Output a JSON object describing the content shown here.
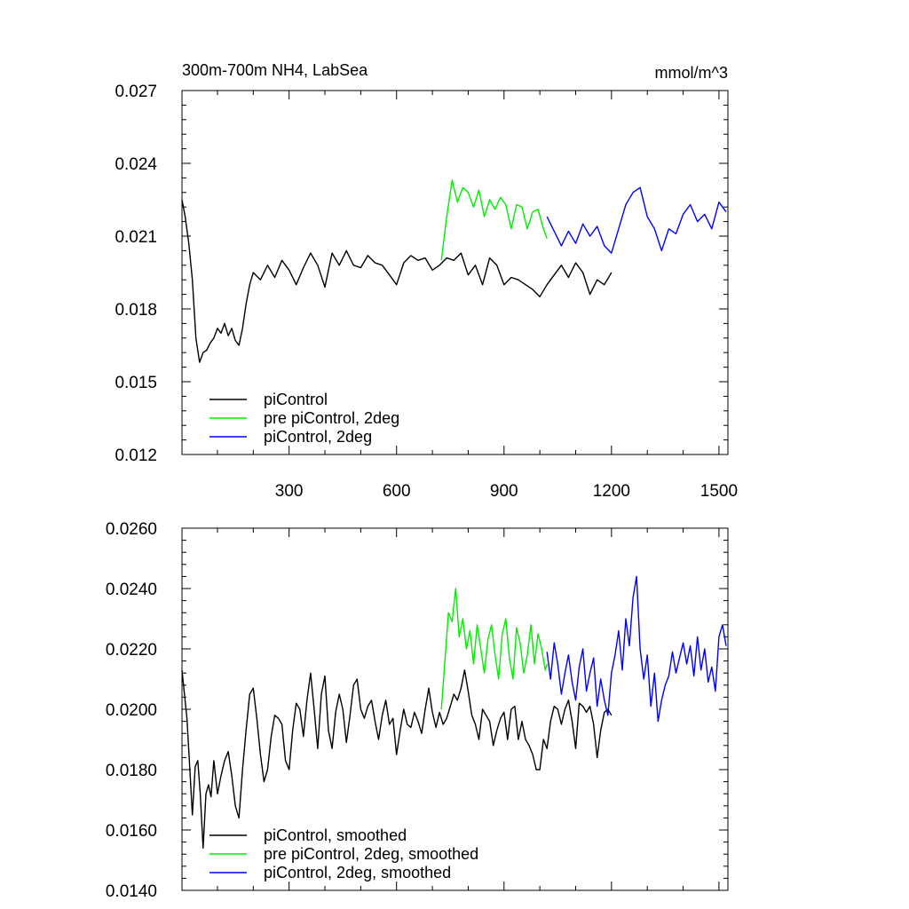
{
  "chart_data": [
    {
      "type": "line",
      "title": "300m-700m NH4, LabSea",
      "units": "mmol/m^3",
      "xlabel": "",
      "ylabel": "",
      "xlim": [
        1,
        1525
      ],
      "ylim": [
        0.012,
        0.027
      ],
      "x_ticks": [
        300,
        600,
        900,
        1200,
        1500
      ],
      "x_tick_labels": [
        "300",
        "600",
        "900",
        "1200",
        "1500"
      ],
      "y_ticks": [
        0.012,
        0.015,
        0.018,
        0.021,
        0.024,
        0.027
      ],
      "y_tick_labels": [
        "0.012",
        "0.015",
        "0.018",
        "0.021",
        "0.024",
        "0.027"
      ],
      "grid": false,
      "legend_position": "bottom-left",
      "series": [
        {
          "name": "piControl",
          "color": "#000000",
          "x": [
            1,
            10,
            20,
            30,
            40,
            50,
            60,
            70,
            80,
            90,
            100,
            110,
            120,
            130,
            140,
            150,
            160,
            170,
            180,
            190,
            200,
            220,
            240,
            260,
            280,
            300,
            320,
            340,
            360,
            380,
            400,
            420,
            440,
            460,
            480,
            500,
            520,
            540,
            560,
            580,
            600,
            620,
            640,
            660,
            680,
            700,
            720,
            740,
            760,
            780,
            800,
            820,
            840,
            860,
            880,
            900,
            920,
            940,
            960,
            980,
            1000,
            1020,
            1040,
            1060,
            1080,
            1100,
            1120,
            1140,
            1160,
            1180,
            1200
          ],
          "values": [
            0.0225,
            0.0218,
            0.0207,
            0.0192,
            0.0168,
            0.0158,
            0.0162,
            0.0163,
            0.0166,
            0.0168,
            0.0172,
            0.017,
            0.0174,
            0.0169,
            0.0172,
            0.0167,
            0.0165,
            0.0172,
            0.0182,
            0.019,
            0.0195,
            0.0192,
            0.0198,
            0.0193,
            0.02,
            0.0196,
            0.019,
            0.0197,
            0.0203,
            0.0198,
            0.0189,
            0.0203,
            0.0198,
            0.0204,
            0.0198,
            0.0197,
            0.0202,
            0.0199,
            0.0198,
            0.0194,
            0.019,
            0.0199,
            0.0202,
            0.02,
            0.0201,
            0.0196,
            0.0198,
            0.0201,
            0.02,
            0.0203,
            0.0194,
            0.0198,
            0.019,
            0.0201,
            0.0198,
            0.019,
            0.0193,
            0.0192,
            0.019,
            0.0188,
            0.0185,
            0.019,
            0.0194,
            0.0198,
            0.0193,
            0.0199,
            0.0195,
            0.0186,
            0.0192,
            0.019,
            0.0195
          ]
        },
        {
          "name": "pre piControl, 2deg",
          "color": "#00ee00",
          "x": [
            725,
            740,
            755,
            770,
            785,
            800,
            815,
            830,
            845,
            860,
            875,
            890,
            905,
            920,
            935,
            950,
            965,
            980,
            995,
            1010,
            1020
          ],
          "values": [
            0.02,
            0.0218,
            0.0233,
            0.0224,
            0.023,
            0.0228,
            0.0222,
            0.0229,
            0.0218,
            0.0225,
            0.0221,
            0.0226,
            0.0223,
            0.0213,
            0.0223,
            0.0222,
            0.0213,
            0.022,
            0.0221,
            0.0213,
            0.0209
          ]
        },
        {
          "name": "piControl, 2deg",
          "color": "#0000ff",
          "x": [
            1020,
            1040,
            1060,
            1080,
            1100,
            1120,
            1140,
            1160,
            1180,
            1200,
            1220,
            1240,
            1260,
            1280,
            1300,
            1320,
            1340,
            1360,
            1380,
            1400,
            1420,
            1440,
            1460,
            1480,
            1500,
            1520
          ],
          "values": [
            0.0218,
            0.0212,
            0.0206,
            0.0212,
            0.0207,
            0.0215,
            0.021,
            0.0214,
            0.0206,
            0.0203,
            0.0213,
            0.0223,
            0.0228,
            0.023,
            0.0218,
            0.0213,
            0.0204,
            0.0213,
            0.0211,
            0.0219,
            0.0223,
            0.0216,
            0.0219,
            0.0213,
            0.0224,
            0.022
          ]
        }
      ]
    },
    {
      "type": "line",
      "title": "",
      "xlabel": "",
      "ylabel": "",
      "xlim": [
        1,
        1525
      ],
      "ylim": [
        0.014,
        0.026
      ],
      "x_ticks": [
        300,
        600,
        900,
        1200,
        1500
      ],
      "y_ticks": [
        0.014,
        0.016,
        0.018,
        0.02,
        0.022,
        0.024,
        0.026
      ],
      "y_tick_labels": [
        "0.0140",
        "0.0160",
        "0.0180",
        "0.0200",
        "0.0220",
        "0.0240",
        "0.0260"
      ],
      "grid": false,
      "legend_position": "bottom-left",
      "series": [
        {
          "name": "piControl, smoothed",
          "color": "#000000",
          "x": [
            1,
            8,
            15,
            22,
            30,
            38,
            45,
            52,
            60,
            68,
            75,
            82,
            90,
            100,
            110,
            120,
            130,
            140,
            150,
            160,
            170,
            180,
            190,
            200,
            210,
            220,
            230,
            240,
            250,
            260,
            270,
            280,
            290,
            300,
            310,
            320,
            330,
            340,
            350,
            360,
            370,
            380,
            390,
            400,
            410,
            420,
            430,
            440,
            450,
            460,
            470,
            480,
            490,
            500,
            510,
            520,
            530,
            540,
            550,
            560,
            570,
            580,
            590,
            600,
            610,
            620,
            630,
            640,
            650,
            660,
            670,
            680,
            690,
            700,
            710,
            720,
            730,
            740,
            750,
            760,
            770,
            780,
            790,
            800,
            810,
            820,
            830,
            840,
            850,
            860,
            870,
            880,
            890,
            900,
            910,
            920,
            930,
            940,
            950,
            960,
            970,
            980,
            990,
            1000,
            1010,
            1020,
            1030,
            1040,
            1050,
            1060,
            1070,
            1080,
            1090,
            1100,
            1110,
            1120,
            1130,
            1140,
            1150,
            1160,
            1170,
            1180,
            1190,
            1200
          ],
          "values": [
            0.0213,
            0.0205,
            0.0197,
            0.0182,
            0.0165,
            0.0181,
            0.0183,
            0.0172,
            0.0154,
            0.0172,
            0.0175,
            0.0171,
            0.0183,
            0.0172,
            0.0178,
            0.0183,
            0.0186,
            0.0178,
            0.0168,
            0.0164,
            0.018,
            0.0193,
            0.0205,
            0.0207,
            0.0197,
            0.0185,
            0.0176,
            0.018,
            0.0191,
            0.0198,
            0.0197,
            0.0195,
            0.0183,
            0.018,
            0.0193,
            0.0202,
            0.02,
            0.0191,
            0.0203,
            0.0212,
            0.02,
            0.0187,
            0.0205,
            0.0211,
            0.0193,
            0.0187,
            0.0199,
            0.0205,
            0.02,
            0.0189,
            0.0198,
            0.0208,
            0.021,
            0.02,
            0.0197,
            0.0201,
            0.0203,
            0.0196,
            0.019,
            0.0198,
            0.0203,
            0.0195,
            0.0197,
            0.0185,
            0.0193,
            0.02,
            0.0195,
            0.0194,
            0.0199,
            0.0196,
            0.0192,
            0.02,
            0.0207,
            0.0199,
            0.0194,
            0.0199,
            0.0195,
            0.0197,
            0.0201,
            0.0205,
            0.0203,
            0.0207,
            0.0213,
            0.0206,
            0.0198,
            0.0195,
            0.019,
            0.02,
            0.0198,
            0.0196,
            0.0188,
            0.0193,
            0.0197,
            0.0199,
            0.019,
            0.02,
            0.0201,
            0.019,
            0.0196,
            0.019,
            0.0188,
            0.0185,
            0.018,
            0.018,
            0.019,
            0.0187,
            0.0196,
            0.0201,
            0.02,
            0.0195,
            0.02,
            0.0203,
            0.0196,
            0.0187,
            0.0202,
            0.0201,
            0.0199,
            0.0201,
            0.0195,
            0.0184,
            0.0193,
            0.0199,
            0.02,
            0.0198
          ]
        },
        {
          "name": "pre piControl, 2deg, smoothed",
          "color": "#00ee00",
          "x": [
            725,
            735,
            745,
            755,
            765,
            775,
            785,
            795,
            805,
            815,
            825,
            835,
            845,
            855,
            865,
            875,
            885,
            895,
            905,
            915,
            925,
            935,
            945,
            955,
            965,
            975,
            985,
            995,
            1005,
            1015,
            1020
          ],
          "values": [
            0.02,
            0.0216,
            0.0232,
            0.0229,
            0.024,
            0.0224,
            0.023,
            0.022,
            0.0226,
            0.0215,
            0.0228,
            0.022,
            0.0212,
            0.0223,
            0.0228,
            0.0218,
            0.021,
            0.0225,
            0.023,
            0.0217,
            0.021,
            0.0227,
            0.0222,
            0.0212,
            0.0218,
            0.0228,
            0.0215,
            0.0225,
            0.022,
            0.0213,
            0.0215
          ]
        },
        {
          "name": "piControl, 2deg, smoothed",
          "color": "#0000ff",
          "x": [
            1020,
            1030,
            1040,
            1050,
            1060,
            1070,
            1080,
            1090,
            1100,
            1110,
            1120,
            1130,
            1140,
            1150,
            1160,
            1170,
            1180,
            1190,
            1200,
            1210,
            1220,
            1230,
            1240,
            1250,
            1260,
            1270,
            1280,
            1290,
            1300,
            1310,
            1320,
            1330,
            1340,
            1350,
            1360,
            1370,
            1380,
            1390,
            1400,
            1410,
            1420,
            1430,
            1440,
            1450,
            1460,
            1470,
            1480,
            1490,
            1500,
            1510,
            1520
          ],
          "values": [
            0.0219,
            0.021,
            0.0222,
            0.0215,
            0.0205,
            0.0212,
            0.0218,
            0.0209,
            0.0203,
            0.0214,
            0.022,
            0.0206,
            0.0212,
            0.0217,
            0.0201,
            0.021,
            0.0203,
            0.0198,
            0.0212,
            0.0218,
            0.0226,
            0.0213,
            0.023,
            0.0221,
            0.0237,
            0.0244,
            0.022,
            0.021,
            0.0218,
            0.0201,
            0.0212,
            0.0196,
            0.0203,
            0.0208,
            0.0211,
            0.0219,
            0.0212,
            0.0217,
            0.0222,
            0.0215,
            0.0221,
            0.0211,
            0.0224,
            0.0213,
            0.022,
            0.0209,
            0.0214,
            0.0206,
            0.0224,
            0.0228,
            0.0221
          ]
        }
      ]
    }
  ]
}
